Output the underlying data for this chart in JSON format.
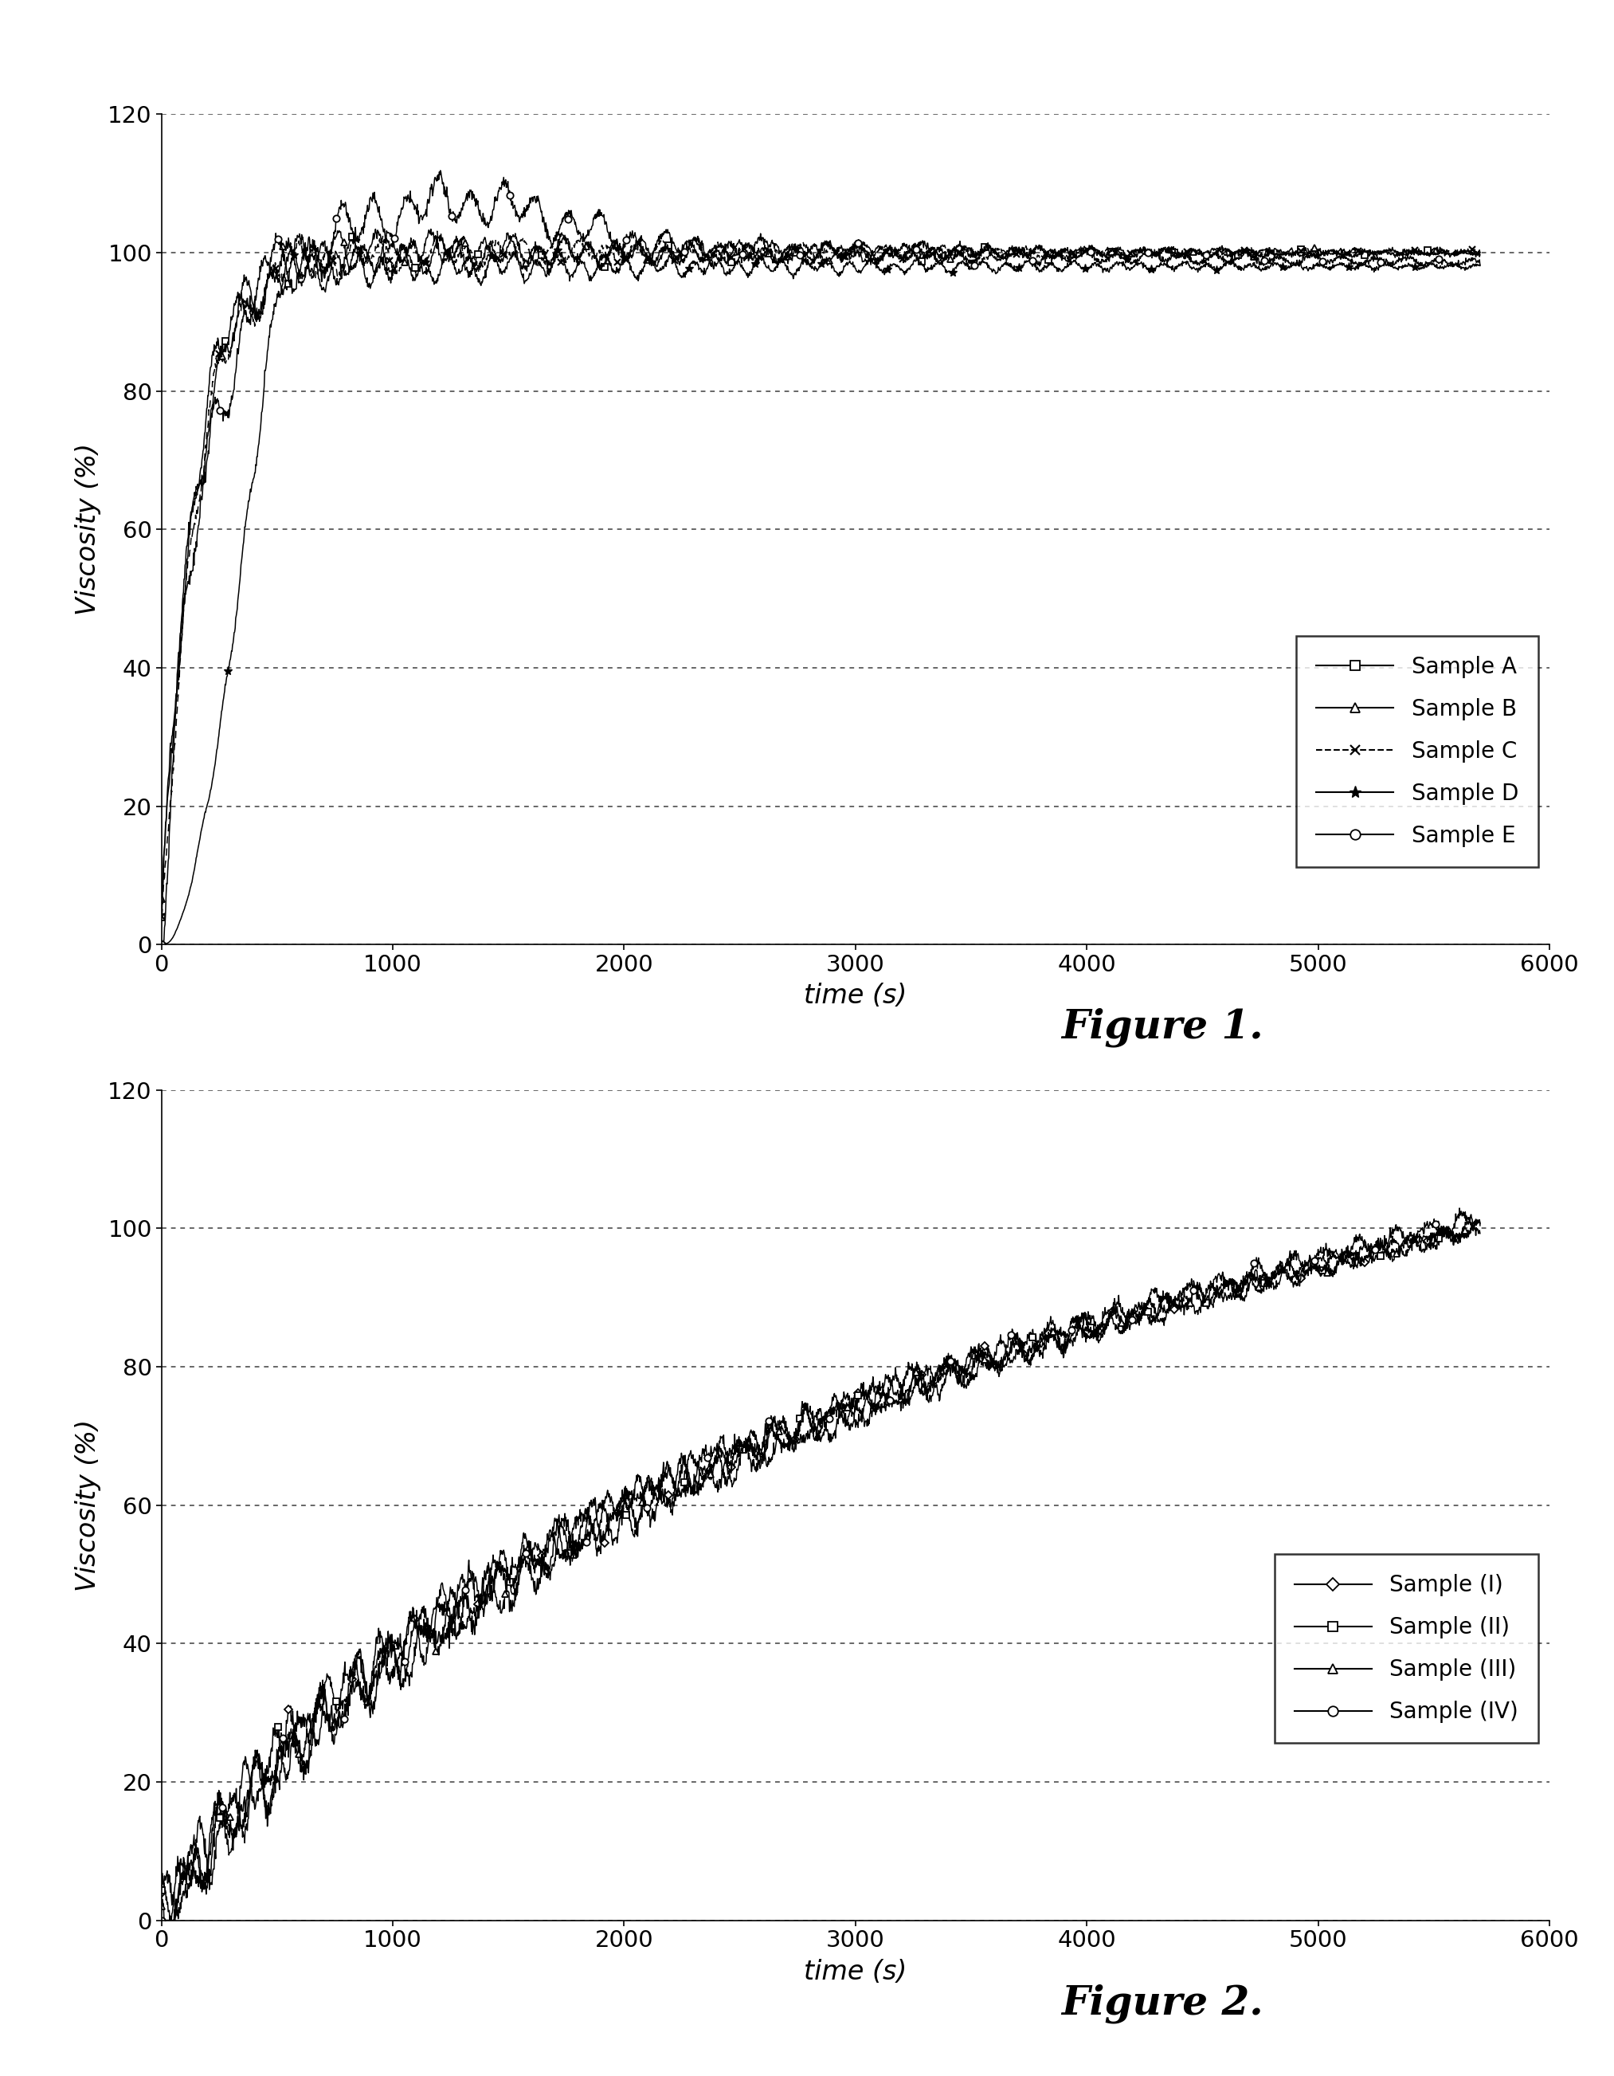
{
  "fig1": {
    "xlabel": "time (s)",
    "ylabel": "Viscosity (%)",
    "xlim": [
      0,
      6000
    ],
    "ylim": [
      0,
      120
    ],
    "yticks": [
      0,
      20,
      40,
      60,
      80,
      100,
      120
    ],
    "xticks": [
      0,
      1000,
      2000,
      3000,
      4000,
      5000,
      6000
    ],
    "figure_label": "Figure 1.",
    "legend_labels": [
      "Sample A",
      "Sample B",
      "Sample C",
      "Sample D",
      "Sample E"
    ]
  },
  "fig2": {
    "xlabel": "time (s)",
    "ylabel": "Viscosity (%)",
    "xlim": [
      0,
      6000
    ],
    "ylim": [
      0,
      120
    ],
    "yticks": [
      0,
      20,
      40,
      60,
      80,
      100,
      120
    ],
    "xticks": [
      0,
      1000,
      2000,
      3000,
      4000,
      5000,
      6000
    ],
    "figure_label": "Figure 2.",
    "legend_labels": [
      "Sample (I)",
      "Sample (II)",
      "Sample (III)",
      "Sample (IV)"
    ]
  },
  "background_color": "#ffffff",
  "font_color": "#000000"
}
